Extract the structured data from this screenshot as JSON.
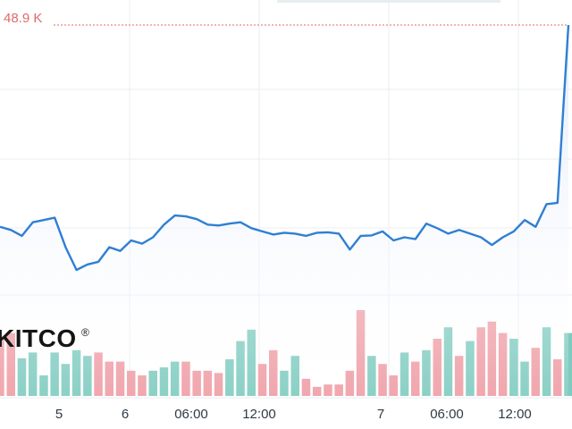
{
  "chart_data": {
    "type": "line",
    "title": "",
    "xlabel": "",
    "ylabel": "",
    "last_value_label": "48.9 K",
    "logo": "KITCO",
    "x_ticks": [
      "5",
      "6",
      "06:00",
      "12:00",
      "7",
      "06:00",
      "12:00"
    ],
    "grid": true,
    "series": [
      {
        "values": [
          44.45,
          44.38,
          44.25,
          44.55,
          44.6,
          44.65,
          44.0,
          43.5,
          43.62,
          43.68,
          44.0,
          43.92,
          44.15,
          44.08,
          44.22,
          44.5,
          44.7,
          44.68,
          44.62,
          44.5,
          44.48,
          44.52,
          44.55,
          44.42,
          44.35,
          44.28,
          44.32,
          44.3,
          44.25,
          44.32,
          44.33,
          44.3,
          43.95,
          44.25,
          44.26,
          44.35,
          44.15,
          44.22,
          44.18,
          44.52,
          44.42,
          44.3,
          44.38,
          44.3,
          44.22,
          44.05,
          44.22,
          44.35,
          44.6,
          44.45,
          44.95,
          44.98,
          48.9
        ]
      }
    ],
    "volume": {
      "values": [
        52,
        55,
        33,
        38,
        18,
        38,
        28,
        40,
        35,
        38,
        30,
        30,
        22,
        18,
        22,
        25,
        30,
        30,
        22,
        22,
        20,
        32,
        48,
        58,
        28,
        40,
        22,
        35,
        15,
        8,
        10,
        10,
        22,
        75,
        35,
        28,
        18,
        38,
        30,
        40,
        50,
        60,
        35,
        48,
        60,
        65,
        55,
        50,
        30,
        42,
        60,
        32,
        55
      ],
      "up": [
        false,
        false,
        true,
        true,
        true,
        true,
        true,
        true,
        true,
        false,
        false,
        false,
        false,
        false,
        true,
        true,
        true,
        false,
        false,
        false,
        false,
        true,
        true,
        true,
        false,
        false,
        true,
        true,
        false,
        false,
        false,
        false,
        false,
        false,
        true,
        false,
        false,
        true,
        false,
        true,
        false,
        true,
        false,
        true,
        false,
        false,
        false,
        true,
        true,
        false,
        true,
        false,
        true
      ]
    }
  },
  "colors": {
    "line": "#2f7fd3",
    "area_top": "#e3ebfa",
    "volume_up": "#7ecbbf",
    "volume_down": "#ef9ca4",
    "last_value": "#e06a6a"
  }
}
